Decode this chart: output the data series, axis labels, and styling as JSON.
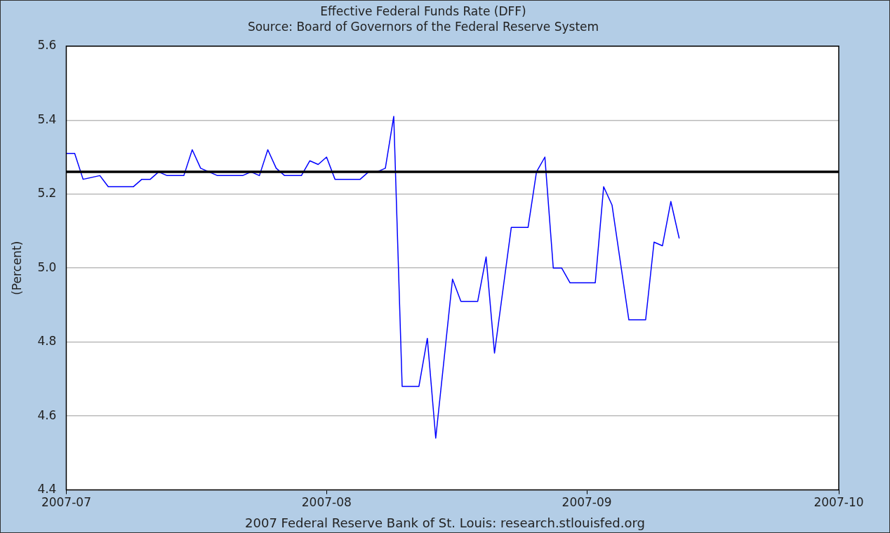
{
  "chart_data": {
    "type": "line",
    "title": "Effective Federal Funds Rate (DFF)",
    "subtitle": "Source: Board of Governors of the Federal Reserve System",
    "ylabel": "(Percent)",
    "x": [
      "2007-07-01",
      "2007-07-02",
      "2007-07-03",
      "2007-07-05",
      "2007-07-06",
      "2007-07-09",
      "2007-07-10",
      "2007-07-11",
      "2007-07-12",
      "2007-07-13",
      "2007-07-15",
      "2007-07-16",
      "2007-07-17",
      "2007-07-18",
      "2007-07-19",
      "2007-07-22",
      "2007-07-23",
      "2007-07-24",
      "2007-07-25",
      "2007-07-26",
      "2007-07-27",
      "2007-07-29",
      "2007-07-30",
      "2007-07-31",
      "2007-08-01",
      "2007-08-02",
      "2007-08-05",
      "2007-08-06",
      "2007-08-07",
      "2007-08-08",
      "2007-08-09",
      "2007-08-10",
      "2007-08-12",
      "2007-08-13",
      "2007-08-14",
      "2007-08-16",
      "2007-08-17",
      "2007-08-19",
      "2007-08-20",
      "2007-08-21",
      "2007-08-23",
      "2007-08-25",
      "2007-08-26",
      "2007-08-27",
      "2007-08-28",
      "2007-08-29",
      "2007-08-30",
      "2007-09-02",
      "2007-09-03",
      "2007-09-04",
      "2007-09-06",
      "2007-09-08",
      "2007-09-09",
      "2007-09-10",
      "2007-09-11",
      "2007-09-12"
    ],
    "series": [
      {
        "color": "#0000ff",
        "values": [
          5.31,
          5.31,
          5.24,
          5.25,
          5.22,
          5.22,
          5.24,
          5.24,
          5.26,
          5.25,
          5.25,
          5.32,
          5.27,
          5.26,
          5.25,
          5.25,
          5.26,
          5.25,
          5.32,
          5.27,
          5.25,
          5.25,
          5.29,
          5.28,
          5.3,
          5.24,
          5.24,
          5.26,
          5.26,
          5.27,
          5.41,
          4.68,
          4.68,
          4.81,
          4.54,
          4.97,
          4.91,
          4.91,
          5.03,
          4.77,
          5.11,
          5.11,
          5.26,
          5.3,
          5.0,
          5.0,
          4.96,
          4.96,
          5.22,
          5.17,
          4.86,
          4.86,
          5.07,
          5.06,
          5.18,
          5.08
        ]
      }
    ],
    "xlim": [
      "2007-07-01",
      "2007-10-01"
    ],
    "xticks": [
      "2007-07",
      "2007-08",
      "2007-09",
      "2007-10"
    ],
    "ylim": [
      4.4,
      5.6
    ],
    "yticks": [
      4.4,
      4.6,
      4.8,
      {
        "value": 5,
        "label": "5.0"
      },
      5.2,
      5.4,
      5.6
    ],
    "ref_lines": [
      {
        "axis": "y",
        "value": 5.26,
        "color": "#000000"
      }
    ],
    "grid": "y",
    "legend": false,
    "marker": "none",
    "line_style": "solid",
    "annotations": [
      "2007 Federal Reserve Bank of St. Louis: research.stlouisfed.org"
    ]
  }
}
